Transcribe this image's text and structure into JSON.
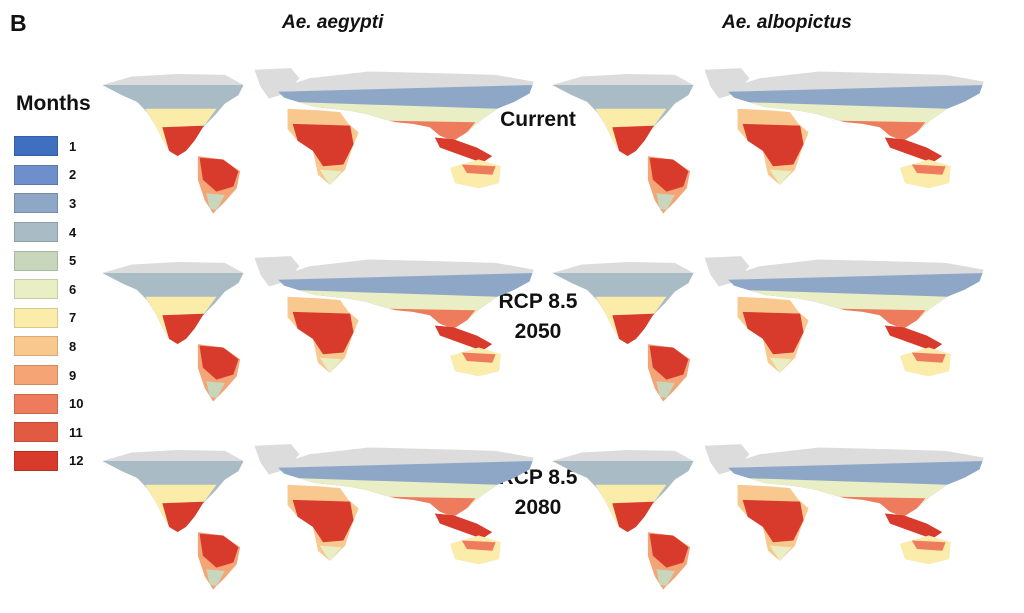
{
  "panel_letter": "B",
  "columns": [
    "Ae. aegypti",
    "Ae. albopictus"
  ],
  "legend": {
    "title": "Months",
    "items": [
      {
        "label": "1",
        "color": "#3f6fbf"
      },
      {
        "label": "2",
        "color": "#6e8fcb"
      },
      {
        "label": "3",
        "color": "#8fa7c7"
      },
      {
        "label": "4",
        "color": "#a9bbc4"
      },
      {
        "label": "5",
        "color": "#c8d6bb"
      },
      {
        "label": "6",
        "color": "#e9eec4"
      },
      {
        "label": "7",
        "color": "#fbecaa"
      },
      {
        "label": "8",
        "color": "#f9c88e"
      },
      {
        "label": "9",
        "color": "#f5a476"
      },
      {
        "label": "10",
        "color": "#ee7c5c"
      },
      {
        "label": "11",
        "color": "#e35a43"
      },
      {
        "label": "12",
        "color": "#d83a2c"
      }
    ]
  },
  "rows": [
    {
      "label_line1": "Current",
      "label_line2": ""
    },
    {
      "label_line1": "RCP 8.5",
      "label_line2": "2050"
    },
    {
      "label_line1": "RCP 8.5",
      "label_line2": "2080"
    }
  ],
  "colors": {
    "land_unsuitable": "#dcdcdc"
  }
}
